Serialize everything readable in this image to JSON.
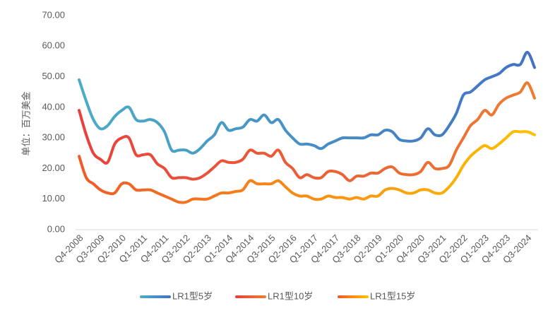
{
  "chart_data": {
    "type": "line",
    "y_label": "单位：百万美金",
    "categories": [
      "Q4-2008",
      null,
      null,
      "Q3-2009",
      null,
      null,
      "Q2-2010",
      null,
      null,
      "Q1-2011",
      null,
      null,
      "Q4-2011",
      null,
      null,
      "Q3-2012",
      null,
      null,
      "Q2-2013",
      null,
      null,
      "Q1-2014",
      null,
      null,
      "Q4-2014",
      null,
      null,
      "Q3-2015",
      null,
      null,
      "Q2-2016",
      null,
      null,
      "Q1-2017",
      null,
      null,
      "Q4-2017",
      null,
      null,
      "Q3-2018",
      null,
      null,
      "Q2-2019",
      null,
      null,
      "Q1-2020",
      null,
      null,
      "Q4-2020",
      null,
      null,
      "Q3-2021",
      null,
      null,
      "Q2-2022",
      null,
      null,
      "Q1-2023",
      null,
      null,
      "Q4-2023",
      null,
      null,
      "Q3-2024",
      null
    ],
    "series": [
      {
        "name": "LR1型5岁",
        "colors": [
          "#4bacc6",
          "#4472c4"
        ],
        "values": [
          49,
          42,
          36,
          33,
          34,
          37,
          39,
          40,
          36,
          35.5,
          36,
          35,
          32,
          26,
          26,
          26,
          25,
          26.5,
          29,
          31,
          35,
          32.5,
          33,
          33.5,
          36,
          35.5,
          37.5,
          35,
          36,
          32.5,
          30,
          28,
          28,
          27.5,
          26.5,
          28,
          29,
          30,
          30,
          30,
          30,
          31,
          31,
          32.5,
          32,
          29.5,
          29,
          29,
          30,
          33,
          31,
          31,
          34,
          38,
          44,
          45,
          47,
          49,
          50,
          51,
          53,
          54,
          54,
          58,
          53
        ]
      },
      {
        "name": "LR1型10岁",
        "colors": [
          "#e8413c",
          "#ed7d31"
        ],
        "values": [
          39,
          31,
          25,
          23,
          22,
          28,
          30,
          30,
          24.5,
          24.5,
          24.5,
          21.5,
          20,
          17,
          17,
          17,
          16.5,
          17,
          18.5,
          20.5,
          22.5,
          22,
          22,
          23,
          26,
          25,
          25,
          24,
          26,
          22,
          20,
          17,
          18,
          17,
          17,
          19,
          19,
          18,
          16,
          17.5,
          17.5,
          18.5,
          18.5,
          20,
          20.5,
          18.5,
          18,
          18,
          19,
          22,
          20,
          20,
          21,
          26,
          30,
          34,
          36,
          39,
          37.5,
          41,
          43,
          44,
          45,
          48,
          43
        ]
      },
      {
        "name": "LR1型15岁",
        "colors": [
          "#f05a28",
          "#ffc000"
        ],
        "values": [
          24,
          17,
          15,
          13,
          12,
          12,
          15,
          15,
          13,
          13,
          13,
          12,
          11,
          10,
          9,
          9,
          10,
          10,
          10,
          11,
          12,
          12,
          12.5,
          13,
          16,
          15,
          15,
          15,
          16,
          14,
          12,
          11,
          11,
          10,
          10,
          11,
          10.5,
          10.5,
          10,
          10.5,
          10,
          11,
          11,
          13,
          13.5,
          13,
          12,
          12,
          13,
          13,
          12,
          12,
          14,
          17,
          21,
          24,
          26,
          27.5,
          26.5,
          28,
          30,
          32,
          32,
          32,
          31
        ]
      }
    ],
    "ylim": [
      0,
      70
    ],
    "yticks": [
      {
        "value": 0,
        "label": "0.00"
      },
      {
        "value": 10,
        "label": "10.00"
      },
      {
        "value": 20,
        "label": "20.00"
      },
      {
        "value": 30,
        "label": "30.00"
      },
      {
        "value": 40,
        "label": "40.00"
      },
      {
        "value": 50,
        "label": "50.00"
      },
      {
        "value": 60,
        "label": "60.00"
      },
      {
        "value": 70,
        "label": "70.00"
      }
    ],
    "grid": false,
    "legend": "bottom"
  }
}
